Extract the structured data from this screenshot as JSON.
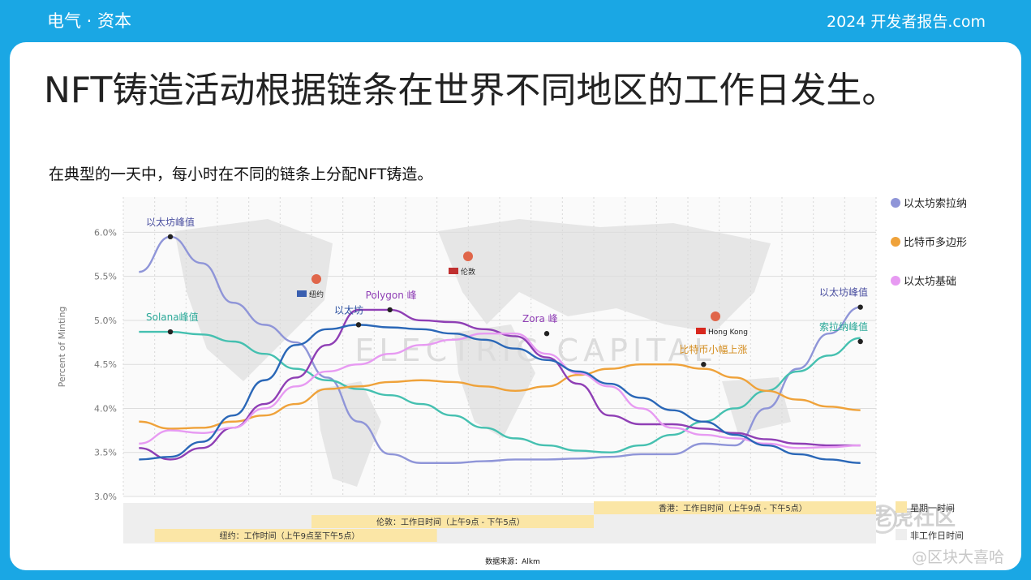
{
  "header": {
    "brand": "电气 · 资本",
    "report": "2024 开发者报告.com"
  },
  "headline": "NFT铸造活动根据链条在世界不同地区的工作日发生。",
  "subtitle": "在典型的一天中，每小时在不同的链条上分配NFT铸造。",
  "watermark": {
    "brand_text": "ELECTRIC CAPITAL",
    "community": "老虎社区",
    "handle": "@区块大喜哈"
  },
  "colors": {
    "ethereum_solana": "#8f95d8",
    "solana": "#45c0b0",
    "bitcoin_polygon": "#efa23a",
    "purple": "#8f3fb5",
    "ethereum_base": "#e79af2",
    "base": "#2a67b7",
    "work_band": "#fbe6a6",
    "nonwork_band": "#eeeeee"
  },
  "chart_data": {
    "type": "line",
    "ylabel": "Percent of Minting",
    "y_ticks": [
      "6.0%",
      "5.5%",
      "5.0%",
      "4.5%",
      "4.0%",
      "3.5%",
      "3.0%"
    ],
    "ylim": [
      3.0,
      6.4
    ],
    "x": [
      0,
      1,
      2,
      3,
      4,
      5,
      6,
      7,
      8,
      9,
      10,
      11,
      12,
      13,
      14,
      15,
      16,
      17,
      18,
      19,
      20,
      21,
      22,
      23
    ],
    "grid": true,
    "legend_position": "right",
    "series": [
      {
        "name": "以太坊索拉纳",
        "color_key": "ethereum_solana",
        "values": [
          5.55,
          5.95,
          5.65,
          5.2,
          4.95,
          4.75,
          4.35,
          3.85,
          3.48,
          3.38,
          3.38,
          3.4,
          3.42,
          3.42,
          3.43,
          3.45,
          3.48,
          3.48,
          3.6,
          3.58,
          4.0,
          4.45,
          4.85,
          5.15
        ]
      },
      {
        "name": "拉纳",
        "color_key": "solana",
        "values": [
          4.87,
          4.87,
          4.84,
          4.76,
          4.62,
          4.45,
          4.32,
          4.22,
          4.15,
          4.05,
          3.92,
          3.78,
          3.66,
          3.58,
          3.52,
          3.5,
          3.58,
          3.7,
          3.85,
          4.0,
          4.2,
          4.42,
          4.6,
          4.8
        ]
      },
      {
        "name": "比特币",
        "color_key": "bitcoin_polygon",
        "values": [
          3.85,
          3.77,
          3.78,
          3.85,
          3.92,
          4.05,
          4.22,
          4.25,
          4.3,
          4.32,
          4.3,
          4.25,
          4.2,
          4.25,
          4.38,
          4.45,
          4.5,
          4.5,
          4.45,
          4.35,
          4.2,
          4.1,
          4.02,
          3.98
        ]
      },
      {
        "name": "多边形",
        "color_key": "purple",
        "values": [
          3.55,
          3.42,
          3.55,
          3.78,
          4.05,
          4.35,
          4.72,
          5.12,
          5.12,
          5.0,
          4.98,
          4.9,
          4.82,
          4.58,
          4.28,
          3.92,
          3.82,
          3.82,
          3.77,
          3.72,
          3.65,
          3.6,
          3.58,
          3.58
        ]
      },
      {
        "name": "以太坊",
        "color_key": "ethereum_base",
        "values": [
          3.6,
          3.75,
          3.72,
          3.78,
          4.0,
          4.25,
          4.42,
          4.5,
          4.62,
          4.72,
          4.78,
          4.85,
          4.85,
          4.62,
          4.4,
          4.25,
          4.0,
          3.78,
          3.7,
          3.66,
          3.6,
          3.55,
          3.56,
          3.58
        ]
      },
      {
        "name": "基础",
        "color_key": "base",
        "values": [
          3.42,
          3.45,
          3.62,
          3.92,
          4.32,
          4.72,
          4.9,
          4.95,
          4.92,
          4.9,
          4.85,
          4.78,
          4.68,
          4.55,
          4.42,
          4.28,
          4.12,
          3.98,
          3.85,
          3.7,
          3.58,
          3.48,
          3.42,
          3.38
        ]
      }
    ],
    "legend": [
      {
        "label": "以太坊索拉纳",
        "color_key": "ethereum_solana"
      },
      {
        "label": "比特币多边形",
        "color_key": "bitcoin_polygon"
      },
      {
        "label": "以太坊基础",
        "color_key": "ethereum_base"
      }
    ],
    "annotations": [
      {
        "label": "以太坊峰值",
        "x": 1,
        "y": 5.95
      },
      {
        "label": "Solana峰值",
        "x": 1,
        "y": 4.87
      },
      {
        "label": "以太坊",
        "x": 7,
        "y": 4.95
      },
      {
        "label": "Polygon 峰",
        "x": 8,
        "y": 5.12
      },
      {
        "label": "Zora 峰",
        "x": 13,
        "y": 4.85
      },
      {
        "label": "比特币小幅上涨",
        "x": 18,
        "y": 4.5
      },
      {
        "label": "以太坊峰值",
        "x": 23,
        "y": 5.15
      },
      {
        "label": "索拉纳峰值",
        "x": 23,
        "y": 4.76
      }
    ],
    "cities": [
      {
        "label": "纽约",
        "flag": "us"
      },
      {
        "label": "伦敦",
        "flag": "uk"
      },
      {
        "label": "Hong Kong",
        "flag": "cn"
      }
    ],
    "working_hours": [
      {
        "label": "纽约：工作时间（上午9点至下午5点）",
        "from_hour": 1,
        "to_hour": 10
      },
      {
        "label": "伦敦：工作日时间（上午9点 - 下午5点）",
        "from_hour": 6,
        "to_hour": 15
      },
      {
        "label": "香港：工作日时间（上午9点 - 下午5点）",
        "from_hour": 15,
        "to_hour": 24
      }
    ],
    "band_legend": {
      "work": "星期一时间",
      "nonwork": "非工作日时间"
    },
    "source": "数据来源：Alkm"
  }
}
